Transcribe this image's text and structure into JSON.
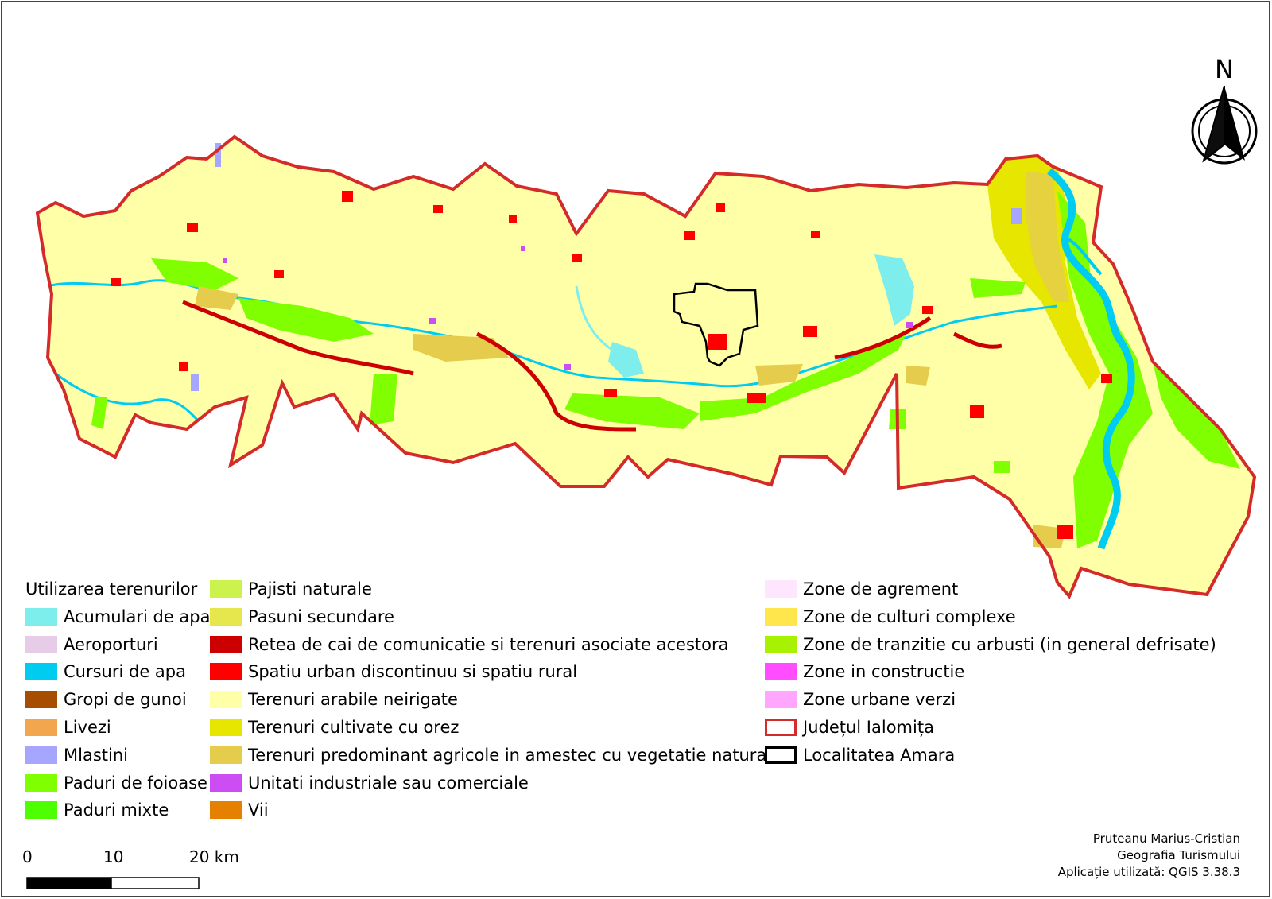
{
  "north_arrow": {
    "label": "N",
    "icon": "north-arrow-icon"
  },
  "legend": {
    "title": "Utilizarea terenurilor",
    "columns": [
      [
        {
          "label": "Acumulari de apa",
          "color": "#7eeeed"
        },
        {
          "label": "Aeroporturi",
          "color": "#e6cce6"
        },
        {
          "label": "Cursuri de apa",
          "color": "#00ccf2"
        },
        {
          "label": "Gropi de gunoi",
          "color": "#a64d00"
        },
        {
          "label": "Livezi",
          "color": "#f2a64d"
        },
        {
          "label": "Mlastini",
          "color": "#a6a6ff"
        },
        {
          "label": "Paduri de foioase",
          "color": "#80ff00"
        },
        {
          "label": "Paduri mixte",
          "color": "#4dff00"
        }
      ],
      [
        {
          "label": "Pajisti naturale",
          "color": "#ccf24d"
        },
        {
          "label": "Pasuni secundare",
          "color": "#e6e64d"
        },
        {
          "label": "Retea de cai de comunicatie si terenuri asociate acestora",
          "color": "#cc0000"
        },
        {
          "label": "Spatiu urban discontinuu si spatiu rural",
          "color": "#ff0000"
        },
        {
          "label": "Terenuri arabile neirigate",
          "color": "#ffffa8"
        },
        {
          "label": "Terenuri cultivate cu orez",
          "color": "#e6e600"
        },
        {
          "label": "Terenuri predominant agricole in amestec cu vegetatie naturala",
          "color": "#e6cc4d"
        },
        {
          "label": "Unitati industriale sau comerciale",
          "color": "#cc4df2"
        },
        {
          "label": "Vii",
          "color": "#e68000"
        }
      ],
      [
        {
          "label": "Zone de agrement",
          "color": "#ffe6ff"
        },
        {
          "label": "Zone de culturi complexe",
          "color": "#ffe64d"
        },
        {
          "label": "Zone de tranzitie cu arbusti (in general defrisate)",
          "color": "#a6f200"
        },
        {
          "label": "Zone in constructie",
          "color": "#ff4dff"
        },
        {
          "label": "Zone urbane verzi",
          "color": "#ffa6ff"
        },
        {
          "label": "Județul Ialomița",
          "color": "#d42a2a",
          "style": "outline"
        },
        {
          "label": "Localitatea Amara",
          "color": "#000000",
          "style": "outline"
        }
      ]
    ]
  },
  "scalebar": {
    "labels": [
      "0",
      "10",
      "20 km"
    ]
  },
  "credits": {
    "author": "Pruteanu Marius-Cristian",
    "course": "Geografia Turismului",
    "software": "Aplicație utilizată: QGIS 3.38.3"
  },
  "colors": {
    "county_outline": "#d42a2a",
    "arable": "#ffffa8",
    "rice": "#e6e600",
    "forest": "#80ff00",
    "urban": "#ff0000",
    "river": "#00ccf2"
  }
}
